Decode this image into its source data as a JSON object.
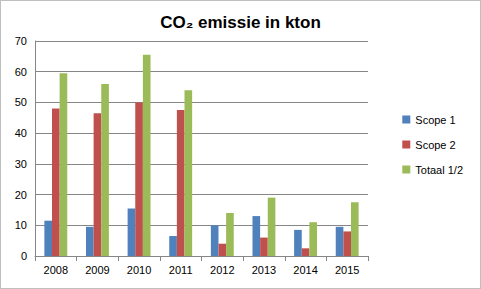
{
  "chart_data": {
    "type": "bar",
    "title": "CO₂ emissie in kton",
    "categories": [
      "2008",
      "2009",
      "2010",
      "2011",
      "2012",
      "2013",
      "2014",
      "2015"
    ],
    "series": [
      {
        "name": "Scope 1",
        "color": "#4f81bd",
        "values": [
          11.5,
          9.5,
          15.5,
          6.5,
          10,
          13,
          8.5,
          9.5
        ]
      },
      {
        "name": "Scope 2",
        "color": "#c0504d",
        "values": [
          48,
          46.5,
          50,
          47.5,
          4,
          6,
          2.5,
          8
        ]
      },
      {
        "name": "Totaal 1/2",
        "color": "#9bbb59",
        "values": [
          59.5,
          56,
          65.5,
          54,
          14,
          19,
          11,
          17.5
        ]
      }
    ],
    "ylim": [
      0,
      70
    ],
    "yticks": [
      0,
      10,
      20,
      30,
      40,
      50,
      60,
      70
    ],
    "grid": true,
    "legend": "right"
  }
}
